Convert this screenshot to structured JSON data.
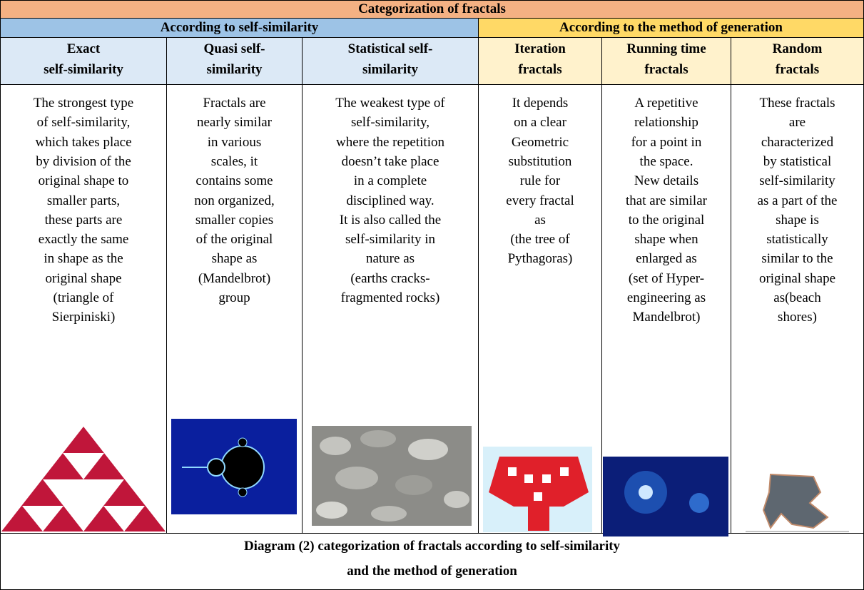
{
  "title": "Categorization of fractals",
  "groups": [
    "According to self-similarity",
    "According to the method of generation"
  ],
  "columns": [
    {
      "header": [
        "Exact",
        "self-similarity"
      ],
      "description": [
        "The strongest type",
        "of self-similarity,",
        "which takes place",
        "by division of the",
        "original shape to",
        "smaller parts,",
        "these parts are",
        "exactly the same",
        "in shape as the",
        "original shape",
        "(triangle of",
        "Sierpiniski)"
      ]
    },
    {
      "header": [
        "Quasi self-",
        "similarity"
      ],
      "description": [
        "Fractals are",
        "nearly similar",
        "in various",
        "scales, it",
        "contains some",
        "non organized,",
        "smaller copies",
        "of the original",
        "shape as",
        "(Mandelbrot)",
        "group"
      ]
    },
    {
      "header": [
        "Statistical self-",
        "similarity"
      ],
      "description": [
        "The weakest type of",
        "self-similarity,",
        "where the repetition",
        "doesn’t take place",
        "in a complete",
        "disciplined way.",
        "It is also called the",
        "self-similarity in",
        "nature as",
        "(earths cracks-",
        "fragmented rocks)"
      ]
    },
    {
      "header": [
        "Iteration",
        "fractals"
      ],
      "description": [
        "It depends",
        "on a clear",
        "Geometric",
        "substitution",
        "rule for",
        "every fractal",
        "as",
        "(the tree of",
        "Pythagoras)"
      ]
    },
    {
      "header": [
        "Running time",
        "fractals"
      ],
      "description": [
        "A repetitive",
        "relationship",
        "for a point in",
        "the space.",
        "New details",
        "that are similar",
        "to the original",
        "shape when",
        "enlarged as",
        "(set of Hyper-",
        "engineering as",
        "Mandelbrot)"
      ]
    },
    {
      "header": [
        "Random",
        "fractals"
      ],
      "description": [
        "These fractals",
        "are",
        "characterized",
        "by statistical",
        "self-similarity",
        "as a part of the",
        "shape is",
        "statistically",
        "similar to the",
        "original shape",
        "as(beach",
        "shores)"
      ]
    }
  ],
  "caption": [
    "Diagram (2) categorization of fractals according to self-similarity",
    "and the method of generation"
  ]
}
